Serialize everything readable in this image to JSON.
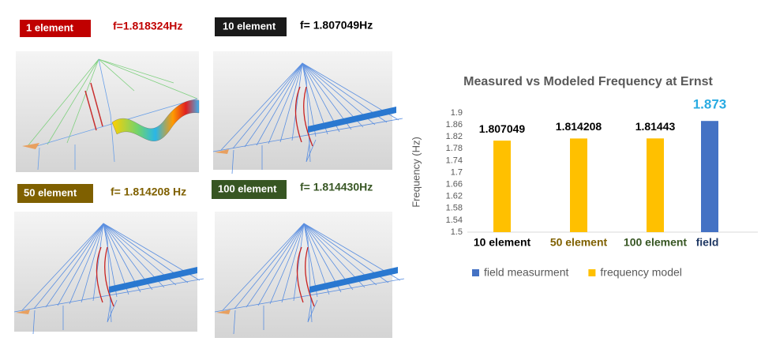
{
  "panels": [
    {
      "label": "1 element",
      "frequency": "f=1.818324Hz"
    },
    {
      "label": "10 element",
      "frequency": "f= 1.807049Hz"
    },
    {
      "label": "50 element",
      "frequency": "f= 1.814208 Hz"
    },
    {
      "label": "100 element",
      "frequency": "f= 1.814430Hz"
    }
  ],
  "chart_data": {
    "type": "bar",
    "title": "Measured vs Modeled Frequency at Ernst",
    "y_label": "Frequency (Hz)",
    "categories": [
      "10 element",
      "50 element",
      "100 element",
      "field"
    ],
    "category_colors": [
      "#000000",
      "#7f6000",
      "#375623",
      "#1f3864"
    ],
    "series": [
      {
        "name": "field measurment",
        "color": "#4472c4",
        "label_color": "#29abe2",
        "values": [
          null,
          null,
          null,
          1.873
        ]
      },
      {
        "name": "frequency model",
        "color": "#ffc000",
        "label_color": "#000000",
        "values": [
          1.807049,
          1.814208,
          1.81443,
          null
        ]
      }
    ],
    "ylim": [
      1.5,
      1.9
    ],
    "yticks": [
      1.5,
      1.54,
      1.58,
      1.62,
      1.66,
      1.7,
      1.74,
      1.78,
      1.82,
      1.86,
      1.9
    ],
    "grid": false,
    "legend": "bottom"
  }
}
